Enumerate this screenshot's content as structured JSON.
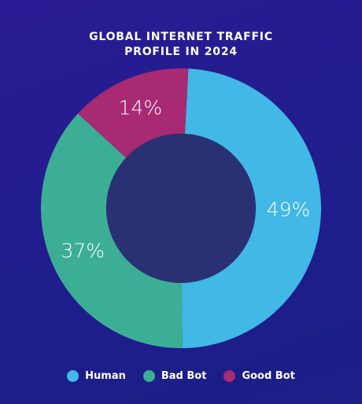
{
  "chart_data": {
    "type": "donut",
    "title": "GLOBAL INTERNET TRAFFIC PROFILE IN 2024",
    "categories": [
      "Human",
      "Bad Bot",
      "Good Bot"
    ],
    "values": [
      49,
      37,
      14
    ],
    "value_labels": [
      "49%",
      "37%",
      "14%"
    ],
    "colors": [
      "#41b8e6",
      "#3dae96",
      "#a82a72"
    ]
  }
}
